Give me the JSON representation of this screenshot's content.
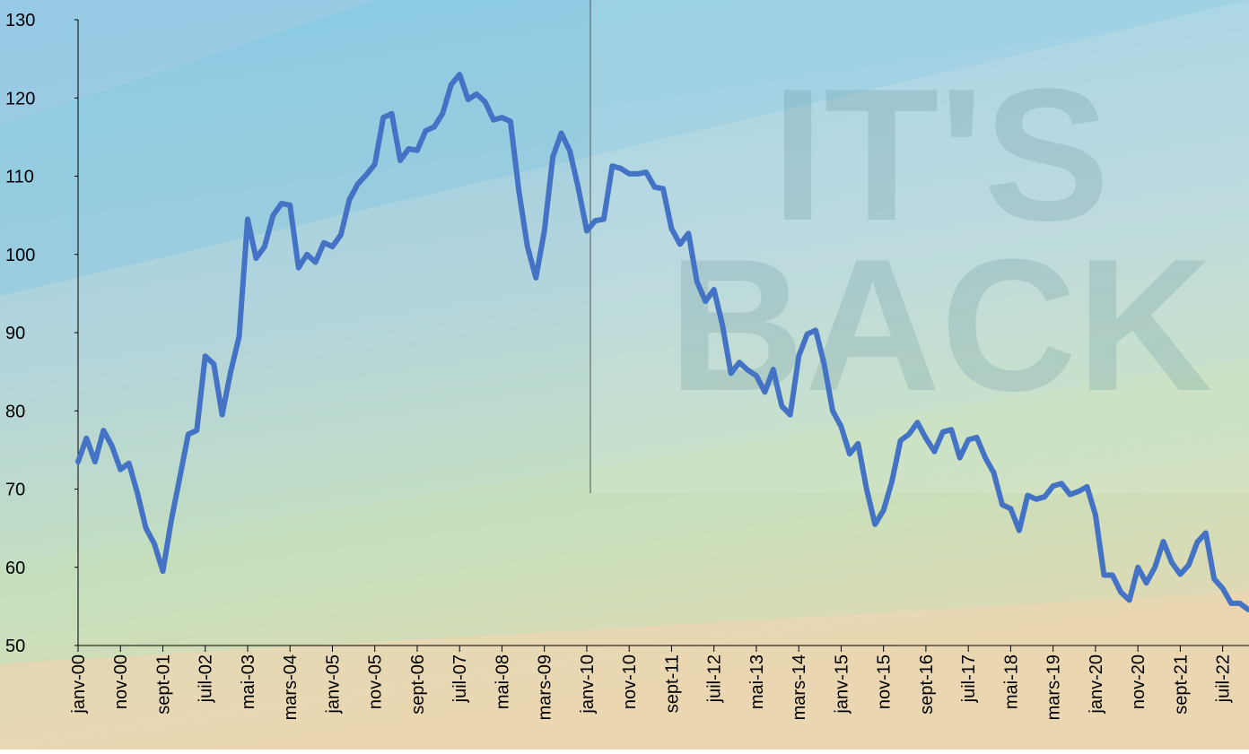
{
  "chart_data": {
    "type": "line",
    "background_text": [
      "IT'S",
      "BACK"
    ],
    "categories": [
      "janv-00",
      null,
      null,
      null,
      null,
      "nov-00",
      null,
      null,
      null,
      null,
      "sept-01",
      null,
      null,
      null,
      null,
      "juil-02",
      null,
      null,
      null,
      null,
      "mai-03",
      null,
      null,
      null,
      null,
      "mars-04",
      null,
      null,
      null,
      null,
      "janv-05",
      null,
      null,
      null,
      null,
      "nov-05",
      null,
      null,
      null,
      null,
      "sept-06",
      null,
      null,
      null,
      null,
      "juil-07",
      null,
      null,
      null,
      null,
      "mai-08",
      null,
      null,
      null,
      null,
      "mars-09",
      null,
      null,
      null,
      null,
      "janv-10",
      null,
      null,
      null,
      null,
      "nov-10",
      null,
      null,
      null,
      null,
      "sept-11",
      null,
      null,
      null,
      null,
      "juil-12",
      null,
      null,
      null,
      null,
      "mai-13",
      null,
      null,
      null,
      null,
      "mars-14",
      null,
      null,
      null,
      null,
      "janv-15",
      null,
      null,
      null,
      null,
      "nov-15",
      null,
      null,
      null,
      null,
      "sept-16",
      null,
      null,
      null,
      null,
      "juil-17",
      null,
      null,
      null,
      null,
      "mai-18",
      null,
      null,
      null,
      null,
      "mars-19",
      null,
      null,
      null,
      null,
      "janv-20",
      null,
      null,
      null,
      null,
      "nov-20",
      null,
      null,
      null,
      null,
      "sept-21",
      null,
      null,
      null,
      null,
      "juil-22",
      null,
      null,
      null
    ],
    "values": [
      73.5,
      76.5,
      73.5,
      77.5,
      75.5,
      72.5,
      73.3,
      69.5,
      65,
      63,
      59.5,
      66,
      71.5,
      77,
      77.5,
      87,
      86,
      79.5,
      85,
      89.5,
      104.5,
      99.5,
      101,
      105,
      106.5,
      106.3,
      98.3,
      100,
      99,
      101.5,
      101,
      102.5,
      107,
      109,
      110.2,
      111.5,
      117.5,
      118,
      112,
      113.5,
      113.3,
      115.8,
      116.3,
      118,
      121.7,
      123,
      119.8,
      120.5,
      119.5,
      117.2,
      117.5,
      117,
      108,
      101,
      97,
      103,
      112.5,
      115.5,
      113.2,
      108.5,
      103,
      104.3,
      104.5,
      111.3,
      111,
      110.3,
      110.3,
      110.5,
      108.6,
      108.4,
      103.3,
      101.3,
      102.7,
      96.5,
      94,
      95.5,
      91,
      84.8,
      86.2,
      85.2,
      84.5,
      82.4,
      85.3,
      80.6,
      79.5,
      87,
      89.8,
      90.3,
      86,
      80,
      78,
      74.5,
      75.8,
      70,
      65.5,
      67.3,
      71,
      76.2,
      77,
      78.5,
      76.5,
      74.8,
      77.3,
      77.6,
      74,
      76.3,
      76.6,
      74,
      72.1,
      68,
      67.5,
      64.7,
      69.2,
      68.7,
      69,
      70.4,
      70.7,
      69.3,
      69.7,
      70.3,
      66.7,
      59,
      59,
      56.8,
      55.8,
      60,
      58,
      60,
      63.3,
      60.6,
      59.1,
      60.3,
      63.2,
      64.4,
      58.5,
      57.3,
      55.4,
      55.4,
      54.6
    ],
    "color": "#4472c4",
    "ylim": [
      50,
      130
    ],
    "yticks": [
      50,
      60,
      70,
      80,
      90,
      100,
      110,
      120,
      130
    ]
  }
}
